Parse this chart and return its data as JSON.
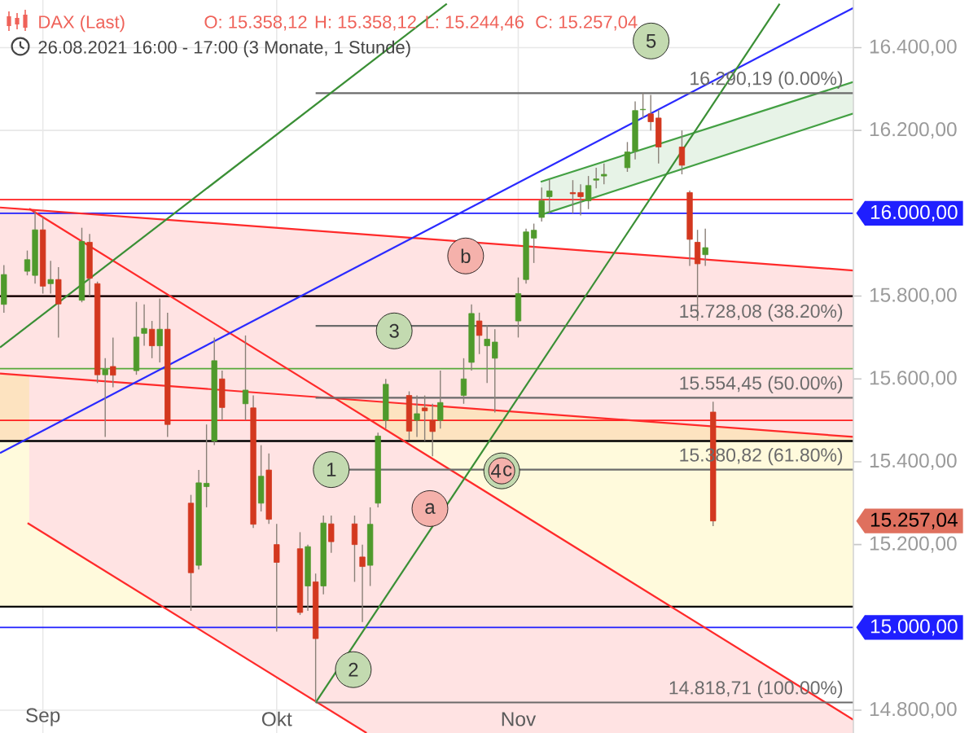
{
  "chart_data": {
    "type": "candlestick",
    "title": "DAX (Last)",
    "subtitle": "26.08.2021 16:00 - 17:00 (3 Monate, 1 Stunde)",
    "x": [
      "2021-08-27",
      "2021-08-30",
      "2021-08-31",
      "2021-09-01",
      "2021-09-02",
      "2021-09-03",
      "2021-09-06",
      "2021-09-07",
      "2021-09-08",
      "2021-09-09",
      "2021-09-10",
      "2021-09-13",
      "2021-09-14",
      "2021-09-15",
      "2021-09-16",
      "2021-09-17",
      "2021-09-20",
      "2021-09-21",
      "2021-09-22",
      "2021-09-23",
      "2021-09-24",
      "2021-09-27",
      "2021-09-28",
      "2021-09-29",
      "2021-09-30",
      "2021-10-01",
      "2021-10-04",
      "2021-10-05",
      "2021-10-06",
      "2021-10-07",
      "2021-10-08",
      "2021-10-11",
      "2021-10-12",
      "2021-10-13",
      "2021-10-14",
      "2021-10-15",
      "2021-10-18",
      "2021-10-19",
      "2021-10-20",
      "2021-10-21",
      "2021-10-22",
      "2021-10-25",
      "2021-10-26",
      "2021-10-27",
      "2021-10-28",
      "2021-10-29",
      "2021-11-01",
      "2021-11-02",
      "2021-11-03",
      "2021-11-04",
      "2021-11-05",
      "2021-11-08",
      "2021-11-09",
      "2021-11-10",
      "2021-11-11",
      "2021-11-12",
      "2021-11-15",
      "2021-11-16",
      "2021-11-17",
      "2021-11-18",
      "2021-11-19",
      "2021-11-22",
      "2021-11-23",
      "2021-11-24",
      "2021-11-25",
      "2021-11-26"
    ],
    "ohlc": [
      [
        15780,
        15875,
        15760,
        15852
      ],
      [
        15860,
        15910,
        15850,
        15888
      ],
      [
        15850,
        16005,
        15830,
        15960
      ],
      [
        15960,
        15990,
        15806,
        15824
      ],
      [
        15830,
        15885,
        15806,
        15840
      ],
      [
        15840,
        15870,
        15700,
        15781
      ],
      [
        15790,
        15965,
        15785,
        15932
      ],
      [
        15930,
        15950,
        15800,
        15843
      ],
      [
        15830,
        15835,
        15590,
        15610
      ],
      [
        15610,
        15650,
        15460,
        15623
      ],
      [
        15630,
        15700,
        15580,
        15609
      ],
      [
        15620,
        15786,
        15610,
        15701
      ],
      [
        15710,
        15780,
        15680,
        15722
      ],
      [
        15720,
        15740,
        15650,
        15680
      ],
      [
        15680,
        15794,
        15640,
        15720
      ],
      [
        15720,
        15760,
        15460,
        15490
      ],
      [
        15300,
        15320,
        15040,
        15132
      ],
      [
        15150,
        15380,
        15140,
        15349
      ],
      [
        15340,
        15490,
        15290,
        15348
      ],
      [
        15450,
        15700,
        15440,
        15644
      ],
      [
        15600,
        15620,
        15500,
        15531
      ],
      [
        15540,
        15705,
        15500,
        15573
      ],
      [
        15530,
        15560,
        15240,
        15249
      ],
      [
        15300,
        15440,
        15280,
        15365
      ],
      [
        15380,
        15420,
        15250,
        15261
      ],
      [
        15200,
        15250,
        14990,
        15157
      ],
      [
        15190,
        15230,
        15030,
        15036
      ],
      [
        15100,
        15200,
        15040,
        15195
      ],
      [
        15110,
        15130,
        14818.71,
        14973
      ],
      [
        15100,
        15270,
        15080,
        15252
      ],
      [
        15250,
        15270,
        15180,
        15207
      ],
      [
        15250,
        15270,
        15110,
        15200
      ],
      [
        15170,
        15200,
        15013,
        15147
      ],
      [
        15150,
        15290,
        15100,
        15249
      ],
      [
        15300,
        15470,
        15290,
        15462
      ],
      [
        15500,
        15600,
        15480,
        15587
      ],
      [
        15560,
        15570,
        15452,
        15474
      ],
      [
        15500,
        15560,
        15460,
        15516
      ],
      [
        15530,
        15560,
        15450,
        15523
      ],
      [
        15500,
        15540,
        15413,
        15473
      ],
      [
        15500,
        15620,
        15480,
        15543
      ],
      [
        15560,
        15650,
        15540,
        15600
      ],
      [
        15640,
        15780,
        15620,
        15758
      ],
      [
        15740,
        15760,
        15660,
        15705
      ],
      [
        15680,
        15730,
        15590,
        15696
      ],
      [
        15650,
        15720,
        15519,
        15689
      ],
      [
        15740,
        15845,
        15700,
        15806
      ],
      [
        15840,
        15963,
        15830,
        15955
      ],
      [
        15940,
        15975,
        15880,
        15959
      ],
      [
        15990,
        16062,
        15980,
        16030
      ],
      [
        16040,
        16081,
        16000,
        16054
      ],
      [
        16050,
        16080,
        16000,
        16047
      ],
      [
        16050,
        16070,
        15995,
        16040
      ],
      [
        16030,
        16090,
        16010,
        16067
      ],
      [
        16080,
        16110,
        16060,
        16083
      ],
      [
        16090,
        16120,
        16070,
        16094
      ],
      [
        16110,
        16172,
        16100,
        16148
      ],
      [
        16150,
        16270,
        16130,
        16248
      ],
      [
        16250,
        16290.19,
        16230,
        16251
      ],
      [
        16240,
        16286,
        16200,
        16221
      ],
      [
        16230,
        16250,
        16120,
        16160
      ],
      [
        16160,
        16200,
        16094,
        16116
      ],
      [
        16050,
        16055,
        15873,
        15937
      ],
      [
        15930,
        15960,
        15740,
        15878
      ],
      [
        15900,
        15963,
        15873,
        15917
      ],
      [
        15520,
        15545,
        15244.46,
        15257.04
      ]
    ],
    "colors": [
      "#4f9a2c",
      "#4f9a2c",
      "#4f9a2c",
      "#d3381f",
      "#4f9a2c",
      "#d3381f",
      "#4f9a2c",
      "#d3381f",
      "#d3381f",
      "#4f9a2c",
      "#d3381f",
      "#4f9a2c",
      "#4f9a2c",
      "#d3381f",
      "#4f9a2c",
      "#d3381f",
      "#d3381f",
      "#4f9a2c",
      "#4f9a2c",
      "#4f9a2c",
      "#d3381f",
      "#4f9a2c",
      "#d3381f",
      "#4f9a2c",
      "#d3381f",
      "#d3381f",
      "#d3381f",
      "#4f9a2c",
      "#d3381f",
      "#4f9a2c",
      "#d3381f",
      "#d3381f",
      "#d3381f",
      "#4f9a2c",
      "#4f9a2c",
      "#4f9a2c",
      "#d3381f",
      "#4f9a2c",
      "#d3381f",
      "#d3381f",
      "#4f9a2c",
      "#4f9a2c",
      "#4f9a2c",
      "#d3381f",
      "#4f9a2c",
      "#4f9a2c",
      "#4f9a2c",
      "#4f9a2c",
      "#4f9a2c",
      "#4f9a2c",
      "#4f9a2c",
      "#d3381f",
      "#d3381f",
      "#4f9a2c",
      "#4f9a2c",
      "#4f9a2c",
      "#4f9a2c",
      "#4f9a2c",
      "#4f9a2c",
      "#d3381f",
      "#d3381f",
      "#d3381f",
      "#d3381f",
      "#d3381f",
      "#4f9a2c",
      "#d3381f"
    ],
    "value_labels": [
      null,
      null,
      null,
      null,
      null,
      null,
      null,
      null,
      null,
      null,
      null,
      null,
      null,
      null,
      null,
      null,
      null,
      null,
      null,
      null,
      null,
      null,
      null,
      null,
      null,
      null,
      null,
      null,
      null,
      null,
      null,
      null,
      null,
      null,
      null,
      null,
      null,
      null,
      null,
      null,
      null,
      null,
      null,
      null,
      null,
      null,
      null,
      null,
      null,
      null,
      null,
      null,
      null,
      null,
      null,
      null,
      null,
      null,
      null,
      null,
      null,
      null,
      null,
      null,
      null,
      "15.257,04"
    ],
    "xlim": [
      "2021-08-26T12:00",
      "2021-12-14"
    ],
    "ylim": [
      14745,
      16515
    ],
    "xticks": [
      {
        "value": "2021-09-01",
        "label": "Sep"
      },
      {
        "value": "2021-10-01",
        "label": "Okt"
      },
      {
        "value": "2021-11-01",
        "label": "Nov"
      }
    ],
    "yticks": [
      {
        "value": 14800,
        "label": "14.800,00"
      },
      {
        "value": 15200,
        "label": "15.200,00"
      },
      {
        "value": 15400,
        "label": "15.400,00"
      },
      {
        "value": 15600,
        "label": "15.600,00"
      },
      {
        "value": 15800,
        "label": "15.800,00"
      },
      {
        "value": 16200,
        "label": "16.200,00"
      },
      {
        "value": 16400,
        "label": "16.400,00"
      }
    ],
    "grid": true,
    "bands": [
      {
        "axis": "y",
        "from": 15450,
        "to": 15800,
        "color": "#fde3c0"
      },
      {
        "axis": "y",
        "from": 15050,
        "to": 15450,
        "color": "#fffadc"
      }
    ],
    "ref_lines": [
      {
        "axis": "y",
        "value": 16033,
        "color": "#ff1f1f"
      },
      {
        "axis": "y",
        "value": 16000,
        "color": "#1f1fff",
        "label": "16.000,00"
      },
      {
        "axis": "y",
        "value": 15800,
        "color": "#ff1f1f"
      },
      {
        "axis": "y",
        "value": 15625,
        "color": "#56aa3a"
      },
      {
        "axis": "y",
        "value": 15500,
        "color": "#ff1f1f"
      },
      {
        "axis": "y",
        "value": 15000,
        "color": "#1f1fff",
        "label": "15.000,00"
      }
    ],
    "series": [
      {
        "type": "line",
        "color": "#ff2a2a",
        "x": [
          "2021-08-26T12:00",
          "2021-12-14"
        ],
        "values": [
          16014,
          15862
        ],
        "upper": [
          16014,
          15862
        ],
        "lower": [
          15613,
          15460
        ]
      },
      {
        "type": "line",
        "color": "#ff2a2a",
        "x": [
          "2021-08-30T06:00",
          "2021-10-12T13:00",
          "2021-12-14"
        ],
        "values": [
          16011,
          15506,
          14777
        ],
        "upper": [
          16011,
          15506,
          14777
        ],
        "lower": [
          15249,
          14745,
          14745
        ]
      },
      {
        "type": "line",
        "color": "#43a043",
        "x": [
          "2021-11-03T21:00",
          "2021-12-14"
        ],
        "values": [
          16076,
          16317
        ],
        "upper": [
          16076,
          16317
        ],
        "lower": [
          15996,
          16241
        ]
      },
      {
        "type": "line",
        "color": "#ff2a2a",
        "x": [
          "2021-08-26T12:00",
          "2021-12-14"
        ],
        "values": [
          15613,
          15460
        ]
      },
      {
        "type": "line",
        "color": "#ff2a2a",
        "x": [
          "2021-08-30T01:00",
          "2021-10-12T13:00"
        ],
        "values": [
          15252,
          14745
        ]
      },
      {
        "type": "line",
        "color": "#2a2aff",
        "x": [
          "2021-08-26T12:00",
          "2021-12-14"
        ],
        "values": [
          15421,
          16496
        ]
      },
      {
        "type": "line",
        "color": "#43a043",
        "x": [
          "2021-11-03T21:00",
          "2021-12-14"
        ],
        "values": [
          15996,
          16241
        ]
      },
      {
        "type": "line",
        "color": "#6b6b6b",
        "x": [
          "2021-10-06",
          "2021-12-14"
        ],
        "values": [
          16290.19,
          16290.19
        ]
      },
      {
        "type": "line",
        "color": "#6b6b6b",
        "x": [
          "2021-10-06",
          "2021-12-14"
        ],
        "values": [
          15728.08,
          15728.08
        ]
      },
      {
        "type": "line",
        "color": "#6b6b6b",
        "x": [
          "2021-10-06",
          "2021-12-14"
        ],
        "values": [
          15554.45,
          15554.45
        ]
      },
      {
        "type": "line",
        "color": "#6b6b6b",
        "x": [
          "2021-10-06",
          "2021-12-14"
        ],
        "values": [
          15380.82,
          15380.82
        ]
      },
      {
        "type": "line",
        "color": "#6b6b6b",
        "x": [
          "2021-10-06",
          "2021-12-14"
        ],
        "values": [
          14818.71,
          14818.71
        ]
      },
      {
        "type": "line",
        "color": "#3a8f35",
        "x": [
          "2021-08-26T12:00",
          "2021-10-22T20:00"
        ],
        "values": [
          15676,
          16506
        ]
      },
      {
        "type": "line",
        "color": "#3a8f35",
        "x": [
          "2021-10-06",
          "2021-12-04T13:00"
        ],
        "values": [
          14818.71,
          16506
        ]
      },
      {
        "type": "scatter",
        "marker": "circle",
        "color": "#c3dab0",
        "x": [
          "2021-10-08T00:00",
          "2021-10-10T20:00",
          "2021-10-16T02:00",
          "2021-10-29T21:00",
          "2021-11-18T01:00"
        ],
        "values": [
          15381,
          14898,
          15716,
          15378,
          16416
        ]
      },
      {
        "type": "scatter",
        "marker": "circle",
        "color": "#f5b1ab",
        "x": [
          "2021-10-20T16:00",
          "2021-10-25T06:00",
          "2021-10-29T21:00"
        ],
        "values": [
          15287,
          15897,
          15378
        ]
      }
    ],
    "annotations": [
      "O: 15.358,12",
      "H: 15.358,12",
      "L: 15.244,46",
      "C: 15.257,04",
      {
        "text": "16.290,19 (0.00%)",
        "x": "2021-12-12T18:00",
        "y": 16290.19
      },
      {
        "text": "15.728,08 (38.20%)",
        "x": "2021-12-12T18:00",
        "y": 15728.08
      },
      {
        "text": "15.554,45 (50.00%)",
        "x": "2021-12-12T18:00",
        "y": 15554.45
      },
      {
        "text": "15.380,82 (61.80%)",
        "x": "2021-12-12T18:00",
        "y": 15380.82
      },
      {
        "text": "14.818,71 (100.00%)",
        "x": "2021-12-12T18:00",
        "y": 14818.71
      },
      {
        "text": "1",
        "x": "2021-10-08T00:00",
        "y": 15381
      },
      {
        "text": "2",
        "x": "2021-10-10T20:00",
        "y": 14898
      },
      {
        "text": "3",
        "x": "2021-10-16T02:00",
        "y": 15716
      },
      {
        "text": "4",
        "x": "2021-10-29T21:00",
        "y": 15378
      },
      {
        "text": "5",
        "x": "2021-11-18T01:00",
        "y": 16416
      },
      {
        "text": "a",
        "x": "2021-10-20T16:00",
        "y": 15287
      },
      {
        "text": "b",
        "x": "2021-10-25T06:00",
        "y": 15897
      },
      {
        "text": "c",
        "x": "2021-10-29T21:00",
        "y": 15378
      }
    ]
  }
}
